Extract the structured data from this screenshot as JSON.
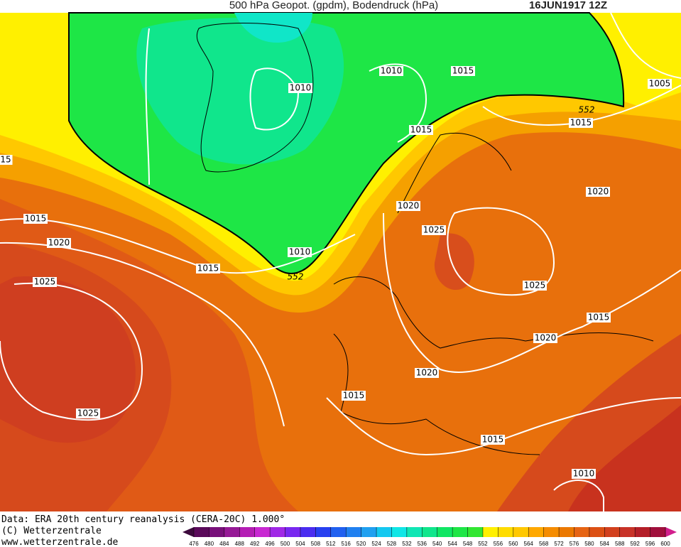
{
  "header": {
    "title": "500 hPa Geopot. (gpdm), Bodendruck (hPa)",
    "date": "16JUN1917 12Z"
  },
  "isobar_labels": [
    "1010",
    "1010",
    "1015",
    "1005",
    "552",
    "1015",
    "15",
    "1015",
    "1020",
    "1020",
    "1025",
    "1015",
    "1020",
    "1010",
    "1015",
    "552",
    "1025",
    "1025",
    "1015",
    "1020",
    "1020",
    "1015",
    "1025",
    "1015",
    "1010"
  ],
  "footer": {
    "source": "Data: ERA 20th century reanalysis (CERA-20C) 1.000°",
    "copyright": "(C) Wetterzentrale",
    "url": "www.wetterzentrale.de"
  },
  "colorbar": {
    "levels": [
      476,
      480,
      484,
      488,
      492,
      496,
      500,
      504,
      508,
      512,
      516,
      520,
      524,
      528,
      532,
      536,
      540,
      544,
      548,
      552,
      556,
      560,
      564,
      568,
      572,
      576,
      580,
      584,
      588,
      592,
      596,
      600
    ],
    "colors": [
      "#5a0a5a",
      "#78107a",
      "#961a96",
      "#b41eb4",
      "#c828d2",
      "#a028e6",
      "#7828f0",
      "#4a2cf0",
      "#2840f0",
      "#2060f0",
      "#2080f0",
      "#20a0f0",
      "#14c8f0",
      "#10e6e6",
      "#10e6b4",
      "#10e68c",
      "#10e664",
      "#1ee646",
      "#32e632",
      "#fff000",
      "#ffdc00",
      "#ffc800",
      "#ffa800",
      "#f58c00",
      "#eb7800",
      "#e66414",
      "#dc5014",
      "#d2401e",
      "#c83228",
      "#b41e28",
      "#a00f3c"
    ],
    "under": "#3c0a3c",
    "over": "#d21e8c"
  }
}
